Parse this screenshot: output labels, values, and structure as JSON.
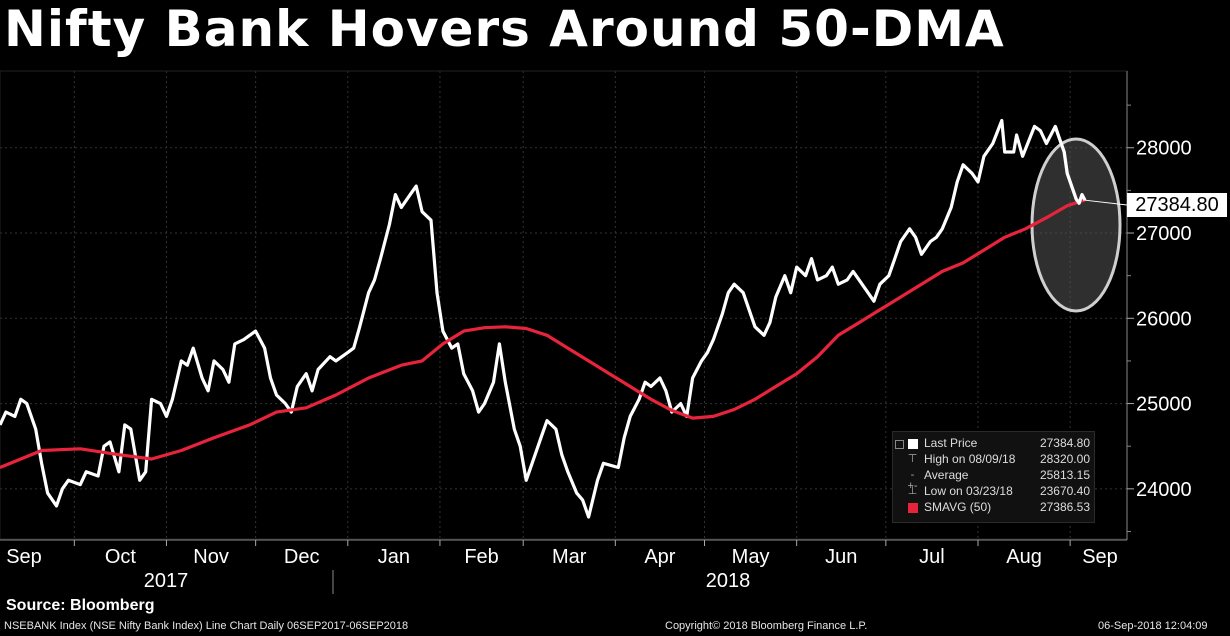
{
  "title": "Nifty Bank Hovers Around 50-DMA",
  "source": "Source: Bloomberg",
  "footer": {
    "left": "NSEBANK Index (NSE Nifty Bank Index) Line Chart  Daily 06SEP2017-06SEP2018",
    "center": "Copyright© 2018 Bloomberg Finance L.P.",
    "right": "06-Sep-2018 12:04:09"
  },
  "colors": {
    "background": "#000000",
    "price_line": "#ffffff",
    "sma_line": "#e8243c",
    "highlight": "#bbbbbb"
  },
  "legend": {
    "items": [
      {
        "label": "Last Price",
        "value": "27384.80",
        "icon": "square-icon"
      },
      {
        "label": "High on 08/09/18",
        "value": "28320.00",
        "icon": "high-marker-icon"
      },
      {
        "label": "Average",
        "value": "25813.15",
        "icon": "average-icon"
      },
      {
        "label": "Low on 03/23/18",
        "value": "23670.40",
        "icon": "low-marker-icon"
      },
      {
        "label": "SMAVG (50)",
        "value": "27386.53",
        "icon": "red-square-icon"
      }
    ]
  },
  "chart_data": {
    "type": "line",
    "xlabel": "",
    "ylabel": "",
    "ylim": [
      23400,
      28900
    ],
    "y_ticks": [
      24000,
      25000,
      26000,
      27000,
      28000
    ],
    "y_tick_labels": [
      "24000",
      "25000",
      "26000",
      "27000",
      "28000"
    ],
    "x_month_labels": [
      "Sep",
      "Oct",
      "Nov",
      "Dec",
      "Jan",
      "Feb",
      "Mar",
      "Apr",
      "May",
      "Jun",
      "Jul",
      "Aug",
      "Sep"
    ],
    "x_year_labels": [
      "2017",
      "2018"
    ],
    "last_value_label": "27384.80",
    "grid": true,
    "series": [
      {
        "name": "Last Price",
        "color": "#ffffff",
        "points": [
          [
            "2017-09-06",
            24750
          ],
          [
            "2017-09-08",
            24900
          ],
          [
            "2017-09-11",
            24850
          ],
          [
            "2017-09-13",
            25050
          ],
          [
            "2017-09-15",
            25000
          ],
          [
            "2017-09-18",
            24700
          ],
          [
            "2017-09-20",
            24300
          ],
          [
            "2017-09-22",
            23950
          ],
          [
            "2017-09-25",
            23800
          ],
          [
            "2017-09-27",
            24000
          ],
          [
            "2017-09-29",
            24100
          ],
          [
            "2017-10-03",
            24050
          ],
          [
            "2017-10-05",
            24200
          ],
          [
            "2017-10-09",
            24150
          ],
          [
            "2017-10-11",
            24500
          ],
          [
            "2017-10-13",
            24550
          ],
          [
            "2017-10-16",
            24200
          ],
          [
            "2017-10-18",
            24750
          ],
          [
            "2017-10-20",
            24700
          ],
          [
            "2017-10-23",
            24100
          ],
          [
            "2017-10-25",
            24200
          ],
          [
            "2017-10-27",
            25050
          ],
          [
            "2017-10-30",
            25000
          ],
          [
            "2017-11-01",
            24850
          ],
          [
            "2017-11-03",
            25050
          ],
          [
            "2017-11-06",
            25500
          ],
          [
            "2017-11-08",
            25450
          ],
          [
            "2017-11-10",
            25650
          ],
          [
            "2017-11-13",
            25300
          ],
          [
            "2017-11-15",
            25150
          ],
          [
            "2017-11-17",
            25500
          ],
          [
            "2017-11-20",
            25400
          ],
          [
            "2017-11-22",
            25250
          ],
          [
            "2017-11-24",
            25700
          ],
          [
            "2017-11-27",
            25750
          ],
          [
            "2017-11-29",
            25800
          ],
          [
            "2017-12-01",
            25850
          ],
          [
            "2017-12-04",
            25650
          ],
          [
            "2017-12-06",
            25300
          ],
          [
            "2017-12-08",
            25100
          ],
          [
            "2017-12-11",
            25000
          ],
          [
            "2017-12-13",
            24900
          ],
          [
            "2017-12-15",
            25200
          ],
          [
            "2017-12-18",
            25350
          ],
          [
            "2017-12-20",
            25150
          ],
          [
            "2017-12-22",
            25400
          ],
          [
            "2017-12-26",
            25550
          ],
          [
            "2017-12-28",
            25500
          ],
          [
            "2018-01-01",
            25600
          ],
          [
            "2018-01-03",
            25650
          ],
          [
            "2018-01-05",
            25900
          ],
          [
            "2018-01-08",
            26300
          ],
          [
            "2018-01-10",
            26450
          ],
          [
            "2018-01-12",
            26700
          ],
          [
            "2018-01-15",
            27100
          ],
          [
            "2018-01-17",
            27450
          ],
          [
            "2018-01-19",
            27300
          ],
          [
            "2018-01-22",
            27450
          ],
          [
            "2018-01-24",
            27550
          ],
          [
            "2018-01-26",
            27250
          ],
          [
            "2018-01-29",
            27150
          ],
          [
            "2018-01-31",
            26300
          ],
          [
            "2018-02-02",
            25850
          ],
          [
            "2018-02-05",
            25650
          ],
          [
            "2018-02-07",
            25700
          ],
          [
            "2018-02-09",
            25350
          ],
          [
            "2018-02-12",
            25150
          ],
          [
            "2018-02-14",
            24900
          ],
          [
            "2018-02-16",
            25000
          ],
          [
            "2018-02-19",
            25250
          ],
          [
            "2018-02-21",
            25700
          ],
          [
            "2018-02-23",
            25250
          ],
          [
            "2018-02-26",
            24700
          ],
          [
            "2018-02-28",
            24500
          ],
          [
            "2018-03-02",
            24100
          ],
          [
            "2018-03-05",
            24400
          ],
          [
            "2018-03-07",
            24600
          ],
          [
            "2018-03-09",
            24800
          ],
          [
            "2018-03-12",
            24700
          ],
          [
            "2018-03-14",
            24400
          ],
          [
            "2018-03-16",
            24200
          ],
          [
            "2018-03-19",
            23950
          ],
          [
            "2018-03-21",
            23870
          ],
          [
            "2018-03-23",
            23670
          ],
          [
            "2018-03-26",
            24100
          ],
          [
            "2018-03-28",
            24300
          ],
          [
            "2018-04-02",
            24250
          ],
          [
            "2018-04-04",
            24600
          ],
          [
            "2018-04-06",
            24850
          ],
          [
            "2018-04-09",
            25050
          ],
          [
            "2018-04-11",
            25250
          ],
          [
            "2018-04-13",
            25200
          ],
          [
            "2018-04-16",
            25300
          ],
          [
            "2018-04-18",
            25150
          ],
          [
            "2018-04-20",
            24900
          ],
          [
            "2018-04-23",
            25000
          ],
          [
            "2018-04-25",
            24850
          ],
          [
            "2018-04-27",
            25300
          ],
          [
            "2018-04-30",
            25500
          ],
          [
            "2018-05-02",
            25600
          ],
          [
            "2018-05-04",
            25750
          ],
          [
            "2018-05-07",
            26050
          ],
          [
            "2018-05-09",
            26300
          ],
          [
            "2018-05-11",
            26400
          ],
          [
            "2018-05-14",
            26300
          ],
          [
            "2018-05-16",
            26100
          ],
          [
            "2018-05-18",
            25900
          ],
          [
            "2018-05-21",
            25800
          ],
          [
            "2018-05-23",
            25950
          ],
          [
            "2018-05-25",
            26250
          ],
          [
            "2018-05-28",
            26500
          ],
          [
            "2018-05-30",
            26300
          ],
          [
            "2018-06-01",
            26600
          ],
          [
            "2018-06-04",
            26500
          ],
          [
            "2018-06-06",
            26700
          ],
          [
            "2018-06-08",
            26450
          ],
          [
            "2018-06-11",
            26500
          ],
          [
            "2018-06-13",
            26600
          ],
          [
            "2018-06-15",
            26400
          ],
          [
            "2018-06-18",
            26450
          ],
          [
            "2018-06-20",
            26550
          ],
          [
            "2018-06-22",
            26450
          ],
          [
            "2018-06-25",
            26300
          ],
          [
            "2018-06-27",
            26200
          ],
          [
            "2018-06-29",
            26400
          ],
          [
            "2018-07-02",
            26500
          ],
          [
            "2018-07-04",
            26700
          ],
          [
            "2018-07-06",
            26900
          ],
          [
            "2018-07-09",
            27050
          ],
          [
            "2018-07-11",
            26950
          ],
          [
            "2018-07-13",
            26750
          ],
          [
            "2018-07-16",
            26900
          ],
          [
            "2018-07-18",
            26950
          ],
          [
            "2018-07-20",
            27050
          ],
          [
            "2018-07-23",
            27300
          ],
          [
            "2018-07-25",
            27600
          ],
          [
            "2018-07-27",
            27800
          ],
          [
            "2018-07-30",
            27700
          ],
          [
            "2018-08-01",
            27600
          ],
          [
            "2018-08-03",
            27900
          ],
          [
            "2018-08-06",
            28050
          ],
          [
            "2018-08-09",
            28320
          ],
          [
            "2018-08-10",
            27950
          ],
          [
            "2018-08-13",
            27950
          ],
          [
            "2018-08-14",
            28150
          ],
          [
            "2018-08-16",
            27900
          ],
          [
            "2018-08-20",
            28250
          ],
          [
            "2018-08-22",
            28200
          ],
          [
            "2018-08-24",
            28050
          ],
          [
            "2018-08-27",
            28250
          ],
          [
            "2018-08-28",
            28150
          ],
          [
            "2018-08-29",
            28050
          ],
          [
            "2018-08-30",
            27950
          ],
          [
            "2018-08-31",
            27700
          ],
          [
            "2018-09-03",
            27400
          ],
          [
            "2018-09-04",
            27350
          ],
          [
            "2018-09-05",
            27450
          ],
          [
            "2018-09-06",
            27385
          ]
        ]
      },
      {
        "name": "SMAVG (50)",
        "color": "#e8243c",
        "points": [
          [
            "2017-09-06",
            24250
          ],
          [
            "2017-09-20",
            24450
          ],
          [
            "2017-10-03",
            24470
          ],
          [
            "2017-10-16",
            24400
          ],
          [
            "2017-10-27",
            24350
          ],
          [
            "2017-11-06",
            24450
          ],
          [
            "2017-11-17",
            24600
          ],
          [
            "2017-11-29",
            24750
          ],
          [
            "2017-12-08",
            24900
          ],
          [
            "2017-12-18",
            24950
          ],
          [
            "2017-12-28",
            25100
          ],
          [
            "2018-01-08",
            25300
          ],
          [
            "2018-01-19",
            25450
          ],
          [
            "2018-01-26",
            25500
          ],
          [
            "2018-02-02",
            25700
          ],
          [
            "2018-02-09",
            25850
          ],
          [
            "2018-02-16",
            25890
          ],
          [
            "2018-02-23",
            25900
          ],
          [
            "2018-03-02",
            25880
          ],
          [
            "2018-03-09",
            25800
          ],
          [
            "2018-03-16",
            25650
          ],
          [
            "2018-03-23",
            25500
          ],
          [
            "2018-03-30",
            25350
          ],
          [
            "2018-04-06",
            25200
          ],
          [
            "2018-04-13",
            25050
          ],
          [
            "2018-04-20",
            24920
          ],
          [
            "2018-04-27",
            24830
          ],
          [
            "2018-05-04",
            24850
          ],
          [
            "2018-05-11",
            24930
          ],
          [
            "2018-05-18",
            25050
          ],
          [
            "2018-05-25",
            25200
          ],
          [
            "2018-06-01",
            25350
          ],
          [
            "2018-06-08",
            25550
          ],
          [
            "2018-06-15",
            25800
          ],
          [
            "2018-06-22",
            25950
          ],
          [
            "2018-06-29",
            26100
          ],
          [
            "2018-07-06",
            26250
          ],
          [
            "2018-07-13",
            26400
          ],
          [
            "2018-07-20",
            26550
          ],
          [
            "2018-07-27",
            26650
          ],
          [
            "2018-08-03",
            26800
          ],
          [
            "2018-08-10",
            26950
          ],
          [
            "2018-08-17",
            27050
          ],
          [
            "2018-08-24",
            27180
          ],
          [
            "2018-08-31",
            27320
          ],
          [
            "2018-09-06",
            27387
          ]
        ]
      }
    ]
  }
}
